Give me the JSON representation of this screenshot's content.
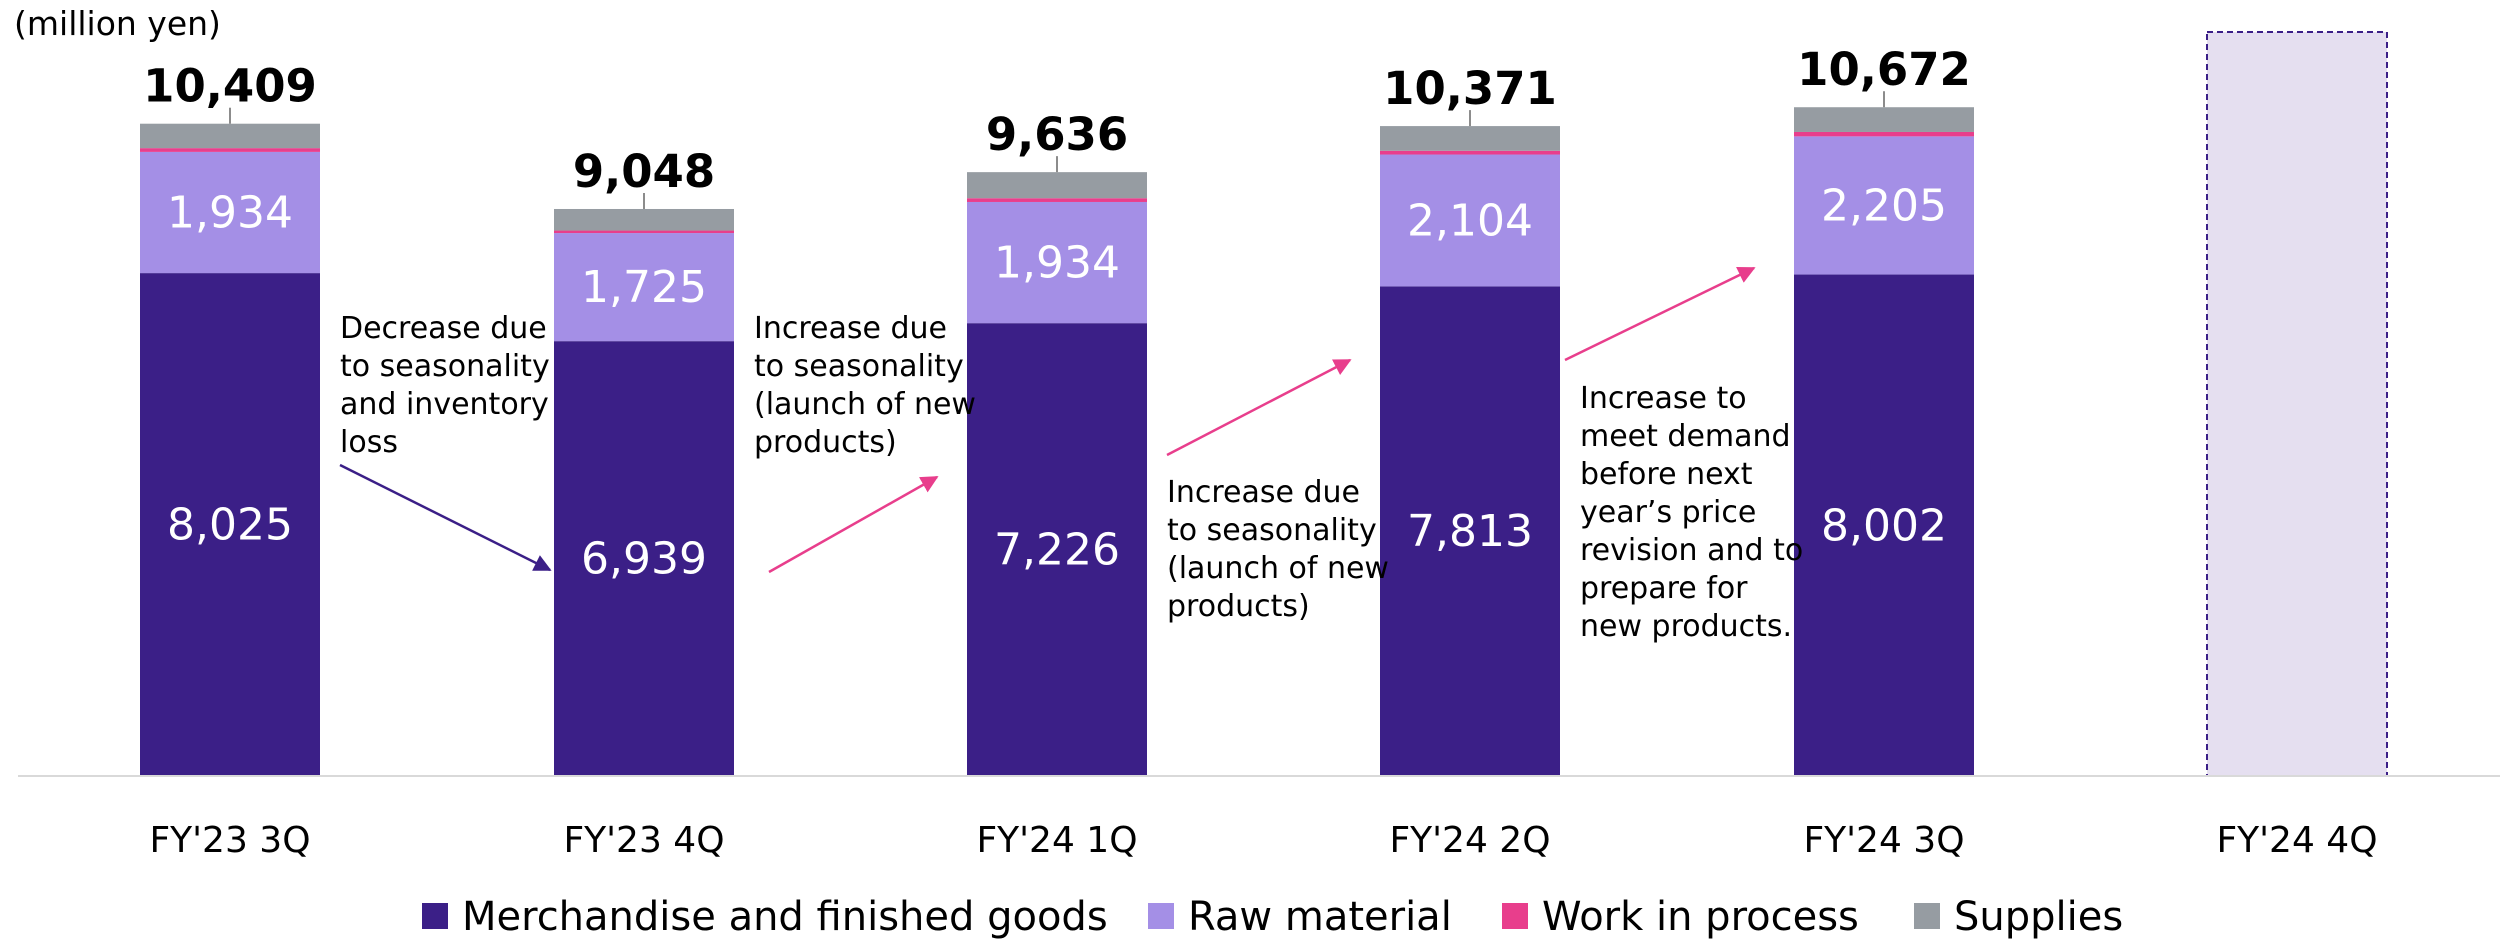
{
  "chart_data": {
    "type": "bar",
    "stacked": true,
    "unit_label": "(million yen)",
    "categories": [
      "FY'23 3Q",
      "FY'23 4Q",
      "FY'24 1Q",
      "FY'24 2Q",
      "FY'24 3Q",
      "FY'24 4Q"
    ],
    "totals": [
      10409,
      9048,
      9636,
      10371,
      10672,
      null
    ],
    "total_labels": [
      "10,409",
      "9,048",
      "9,636",
      "10,371",
      "10,672",
      ""
    ],
    "series": [
      {
        "name": "Merchandise and finished goods",
        "color": "#3b1f87",
        "values": [
          8025,
          6939,
          7226,
          7813,
          8002,
          null
        ],
        "labels": [
          "8,025",
          "6,939",
          "7,226",
          "7,813",
          "8,002",
          ""
        ]
      },
      {
        "name": "Raw material",
        "color": "#a48fe6",
        "values": [
          1934,
          1725,
          1934,
          2104,
          2205,
          null
        ],
        "labels": [
          "1,934",
          "1,725",
          "1,934",
          "2,104",
          "2,205",
          ""
        ]
      },
      {
        "name": "Work in process",
        "color": "#e83e8c",
        "values": [
          60,
          40,
          60,
          60,
          70,
          null
        ],
        "labels": [
          "",
          "",
          "",
          "",
          "",
          ""
        ]
      },
      {
        "name": "Supplies",
        "color": "#969ca2",
        "values": [
          390,
          344,
          416,
          394,
          395,
          null
        ],
        "labels": [
          "",
          "",
          "",
          "",
          "",
          ""
        ]
      }
    ],
    "forecast": {
      "category": "FY'24 4Q",
      "fill": "#e5dff0",
      "border": "#3b1f87"
    },
    "annotations": [
      {
        "lines": [
          "Decrease due",
          "to seasonality",
          "and inventory",
          "loss"
        ],
        "arrow_color": "#3b1f87"
      },
      {
        "lines": [
          "Increase due",
          "to seasonality",
          "(launch of new",
          "products)"
        ],
        "arrow_color": "#e83e8c"
      },
      {
        "lines": [
          "Increase due",
          "to seasonality",
          "(launch of new",
          "products)"
        ],
        "arrow_color": "#e83e8c"
      },
      {
        "lines": [
          "Increase to",
          "meet demand",
          "before next",
          "year’s price",
          "revision and to",
          "prepare for",
          "new products."
        ],
        "arrow_color": "#e83e8c"
      }
    ],
    "ylim": [
      0,
      12000
    ],
    "grid": false,
    "legend_position": "bottom"
  }
}
